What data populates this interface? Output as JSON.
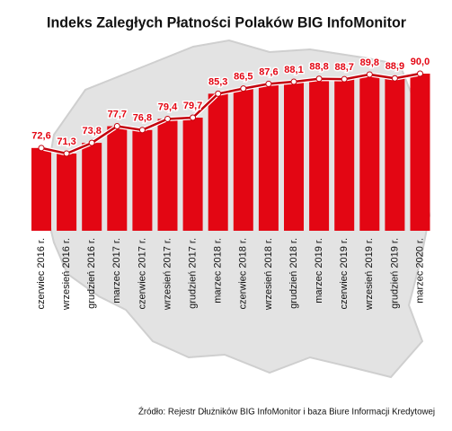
{
  "chart_data": {
    "type": "bar",
    "title": "Indeks Zaległych Płatności Polaków BIG InfoMonitor",
    "categories": [
      "czerwiec 2016 r.",
      "wrzesień 2016 r.",
      "grudzień 2016 r.",
      "marzec 2017 r.",
      "czerwiec 2017 r.",
      "wrzesień 2017 r.",
      "grudzień 2017 r.",
      "marzec 2018 r.",
      "czerwiec 2018 r.",
      "wrzesień 2018 r.",
      "grudzień 2018 r.",
      "marzec 2019 r.",
      "czerwiec 2019 r.",
      "wrzesień 2019 r.",
      "grudzień 2019 r.",
      "marzec 2020 r."
    ],
    "values": [
      72.6,
      71.3,
      73.8,
      77.7,
      76.8,
      79.4,
      79.7,
      85.3,
      86.5,
      87.6,
      88.1,
      88.8,
      88.7,
      89.8,
      88.9,
      90.0
    ],
    "value_labels": [
      "72,6",
      "71,3",
      "73,8",
      "77,7",
      "76,8",
      "79,4",
      "79,7",
      "85,3",
      "86,5",
      "87,6",
      "88,1",
      "88,8",
      "88,7",
      "89,8",
      "88,9",
      "90,0"
    ],
    "color": "#e30613",
    "line_color": "#c4000c",
    "source": "Źródło: Rejestr Dłużników BIG InfoMonitor i baza Biure Informacji Kredytowej"
  }
}
